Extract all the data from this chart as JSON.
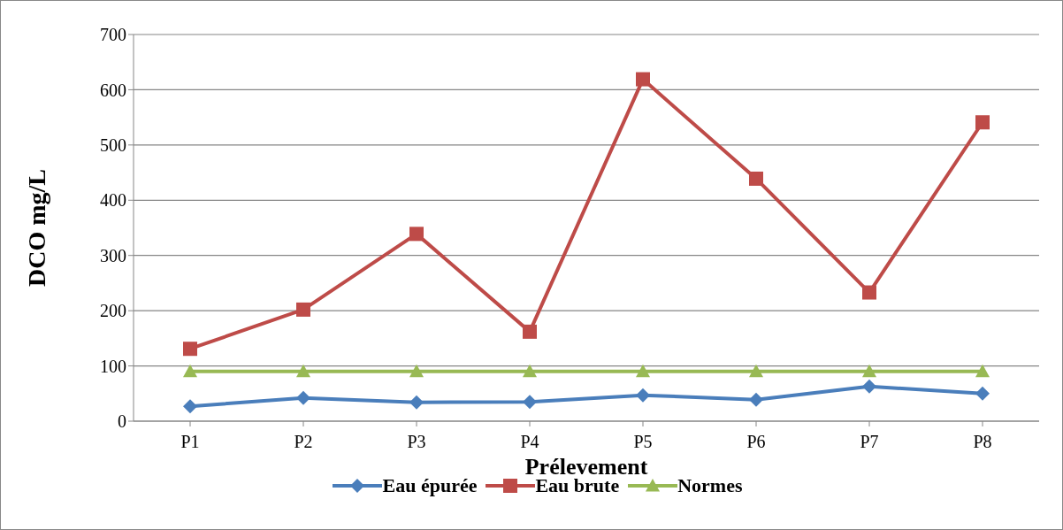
{
  "chart_data": {
    "type": "line",
    "xlabel": "Prélevement",
    "ylabel": "DCO mg/L",
    "categories": [
      "P1",
      "P2",
      "P3",
      "P4",
      "P5",
      "P6",
      "P7",
      "P8"
    ],
    "series": [
      {
        "name": "Eau épurée",
        "color": "#4a7ebb",
        "marker": "diamond",
        "values": [
          27,
          42,
          34,
          35,
          47,
          39,
          63,
          50
        ]
      },
      {
        "name": "Eau brute",
        "color": "#be4b48",
        "marker": "square",
        "values": [
          131,
          202,
          339,
          162,
          619,
          439,
          233,
          541
        ]
      },
      {
        "name": "Normes",
        "color": "#98b954",
        "marker": "triangle",
        "values": [
          90,
          90,
          90,
          90,
          90,
          90,
          90,
          90
        ]
      }
    ],
    "ylim": [
      0,
      700
    ],
    "yticks": [
      0,
      100,
      200,
      300,
      400,
      500,
      600,
      700
    ],
    "grid": "y",
    "legend": "bottom"
  }
}
